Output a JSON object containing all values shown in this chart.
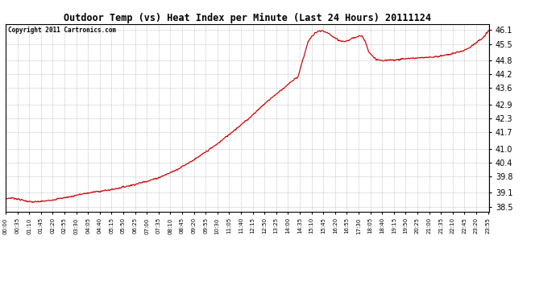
{
  "title": "Outdoor Temp (vs) Heat Index per Minute (Last 24 Hours) 20111124",
  "copyright_text": "Copyright 2011 Cartronics.com",
  "line_color": "#cc0000",
  "background_color": "#ffffff",
  "grid_color": "#aaaaaa",
  "yticks": [
    38.5,
    39.1,
    39.8,
    40.4,
    41.0,
    41.7,
    42.3,
    42.9,
    43.6,
    44.2,
    44.8,
    45.5,
    46.1
  ],
  "ymin": 38.3,
  "ymax": 46.35,
  "total_minutes": 1440,
  "xtick_interval": 35,
  "xtick_labels": [
    "00:00",
    "00:35",
    "01:10",
    "01:45",
    "02:20",
    "02:55",
    "03:30",
    "04:05",
    "04:40",
    "05:15",
    "05:50",
    "06:25",
    "07:00",
    "07:35",
    "08:10",
    "08:45",
    "09:20",
    "09:55",
    "10:30",
    "11:05",
    "11:40",
    "12:15",
    "12:50",
    "13:25",
    "14:00",
    "14:35",
    "15:10",
    "15:45",
    "16:20",
    "16:55",
    "17:30",
    "18:05",
    "18:40",
    "19:15",
    "19:50",
    "20:25",
    "21:00",
    "21:35",
    "22:10",
    "22:45",
    "23:20",
    "23:55"
  ],
  "figwidth": 6.9,
  "figheight": 3.75,
  "dpi": 100
}
